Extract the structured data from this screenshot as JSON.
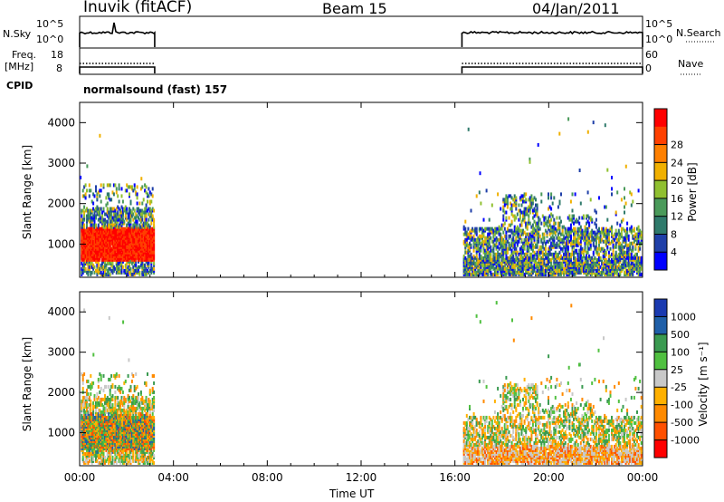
{
  "header": {
    "station": "Inuvik (fitACF)",
    "beam": "Beam 15",
    "date": "04/Jan/2011"
  },
  "panels": {
    "nsky": {
      "left_label": "N.Sky",
      "left_ticks": [
        "10^5",
        "10^0"
      ],
      "right_ticks": [
        "10^5",
        "10^0"
      ],
      "right_label": "N.Search"
    },
    "freq": {
      "left_label_1": "Freq.",
      "left_label_2": "[MHz]",
      "left_ticks": [
        "18",
        "8"
      ],
      "right_ticks": [
        "60",
        "0"
      ],
      "right_label": "Nave"
    },
    "cpid": {
      "label": "CPID",
      "value": "normalsound (fast) 157"
    }
  },
  "colors": {
    "power": [
      "#0000ff",
      "#1f3fa8",
      "#2f7a6b",
      "#4a9a5a",
      "#90c030",
      "#f0b000",
      "#ff8000",
      "#ff4000",
      "#ff0000"
    ],
    "velocity": [
      "#ff0000",
      "#ff5000",
      "#ff8a00",
      "#ffb000",
      "#c8c8c8",
      "#50c040",
      "#3a9a50",
      "#1f5fa8",
      "#1a3ab0"
    ]
  },
  "chart_data": [
    {
      "type": "heatmap",
      "name": "power",
      "ylabel": "Slant Range [km]",
      "xlabel": "Time UT",
      "x_ticks": [
        "00:00",
        "04:00",
        "08:00",
        "12:00",
        "16:00",
        "20:00",
        "00:00"
      ],
      "y_ticks": [
        1000,
        2000,
        3000,
        4000
      ],
      "xlim_hours": [
        0,
        24
      ],
      "ylim_km": [
        180,
        4500
      ],
      "colorbar_label": "Power [dB]",
      "colorbar_ticks": [
        "4",
        "8",
        "12",
        "16",
        "20",
        "24",
        "28"
      ],
      "data_intervals_hours": [
        [
          0.0,
          3.2
        ],
        [
          16.3,
          24.0
        ]
      ]
    },
    {
      "type": "heatmap",
      "name": "velocity",
      "ylabel": "Slant Range [km]",
      "xlabel": "Time UT",
      "x_ticks": [
        "00:00",
        "04:00",
        "08:00",
        "12:00",
        "16:00",
        "20:00",
        "00:00"
      ],
      "y_ticks": [
        1000,
        2000,
        3000,
        4000
      ],
      "xlim_hours": [
        0,
        24
      ],
      "ylim_km": [
        180,
        4500
      ],
      "colorbar_label": "Velocity [m s⁻¹]",
      "colorbar_ticks": [
        "1000",
        "500",
        "100",
        "25",
        "-25",
        "-100",
        "-500",
        "-1000"
      ],
      "data_intervals_hours": [
        [
          0.0,
          3.2
        ],
        [
          16.3,
          24.0
        ]
      ]
    }
  ]
}
